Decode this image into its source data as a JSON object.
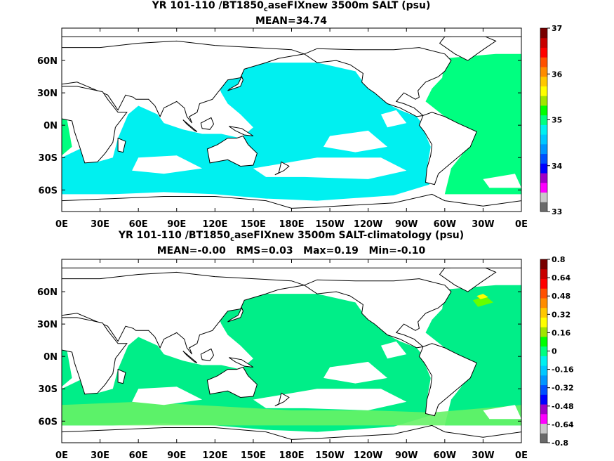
{
  "panels": [
    {
      "title_pre": "YR 101-110 /BT1850",
      "title_sub": "c",
      "title_post": "aseFIXnew 3500m SALT (psu)",
      "stats": "MEAN=34.74",
      "colorbar_labels": [
        "37",
        "36",
        "35",
        "34",
        "33"
      ],
      "main_color": "#00f0f0",
      "secondary_color": "#00ff80"
    },
    {
      "title_pre": "YR 101-110 /BT1850",
      "title_sub": "c",
      "title_post": "aseFIXnew 3500m SALT-climatology (psu)",
      "stats": "MEAN=-0.00   RMS=0.03   Max=0.19   Min=-0.10",
      "colorbar_labels": [
        "0.8",
        "0.64",
        "0.48",
        "0.32",
        "0.16",
        "0",
        "-0.16",
        "-0.32",
        "-0.48",
        "-0.64",
        "-0.8"
      ],
      "main_color": "#00ee88",
      "secondary_color": "#66f266"
    }
  ],
  "x_ticks": [
    "0E",
    "30E",
    "60E",
    "90E",
    "120E",
    "150E",
    "180E",
    "150W",
    "120W",
    "90W",
    "60W",
    "30W",
    "0E"
  ],
  "y_ticks": [
    "60N",
    "30N",
    "0N",
    "30S",
    "60S"
  ],
  "colorbar_colors": [
    "#6a6a6a",
    "#c8c8c8",
    "#ff00ff",
    "#a000c8",
    "#0000ff",
    "#0050ff",
    "#0096ff",
    "#00c8ff",
    "#00f0f0",
    "#00ff80",
    "#00ff00",
    "#a0e600",
    "#ffff00",
    "#ffc800",
    "#ff8c00",
    "#ff5000",
    "#ff0000",
    "#c80000",
    "#780000"
  ]
}
